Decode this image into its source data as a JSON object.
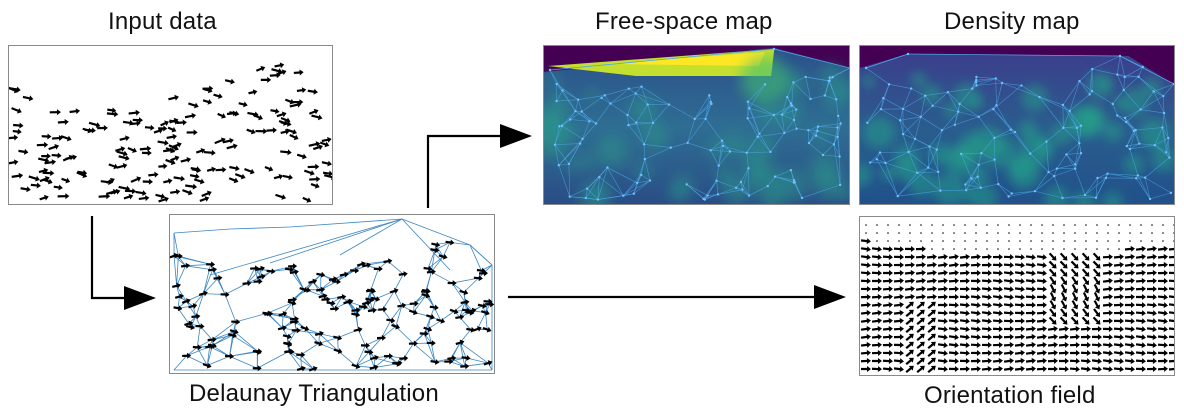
{
  "labels": {
    "input": "Input data",
    "delaunay": "Delaunay Triangulation",
    "free_space": "Free-space map",
    "density": "Density map",
    "orientation": "Orientation field"
  },
  "colors": {
    "edge": "#3b86c4",
    "arrow": "#000000",
    "map_low": "#440154",
    "map_mid": "#2a788e",
    "map_high": "#fde725",
    "panel_border": "#8a8a8a"
  },
  "icons": [
    "arrow-glyph-icon",
    "flow-arrowhead-icon"
  ]
}
